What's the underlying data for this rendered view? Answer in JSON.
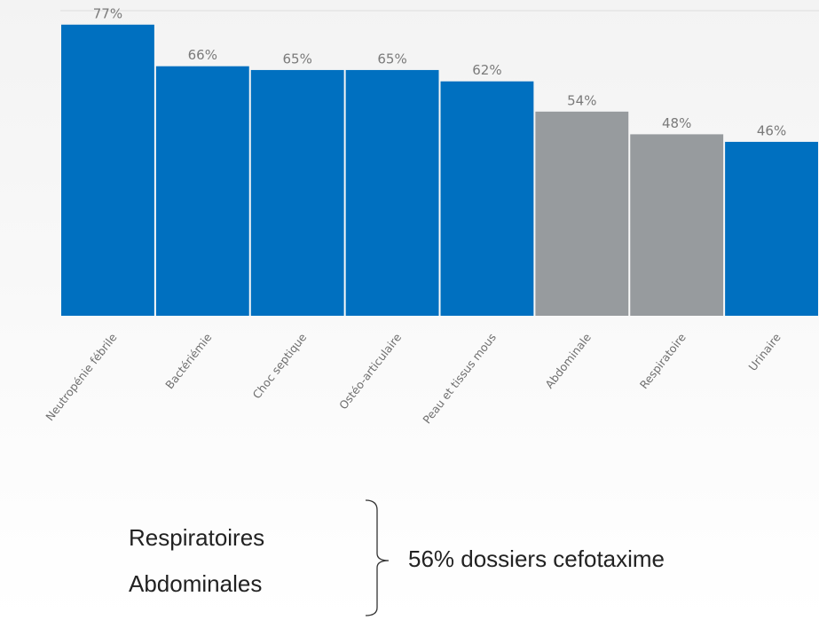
{
  "chart_data": {
    "type": "bar",
    "categories": [
      "Neutropénie fébrile",
      "Bactériémie",
      "Choc septique",
      "Ostéo-articulaire",
      "Peau et tissus mous",
      "Abdominale",
      "Respiratoire",
      "Urinaire"
    ],
    "values": [
      77,
      66,
      65,
      65,
      62,
      54,
      48,
      46
    ],
    "value_labels": [
      "77%",
      "66%",
      "65%",
      "65%",
      "62%",
      "54%",
      "48%",
      "46%"
    ],
    "colors": [
      "#0070c0",
      "#0070c0",
      "#0070c0",
      "#0070c0",
      "#0070c0",
      "#979b9e",
      "#979b9e",
      "#0070c0"
    ],
    "ylim": [
      0,
      80
    ],
    "annotations": [
      "Respiratoires",
      "Abdominales",
      "56% dossiers cefotaxime"
    ]
  }
}
